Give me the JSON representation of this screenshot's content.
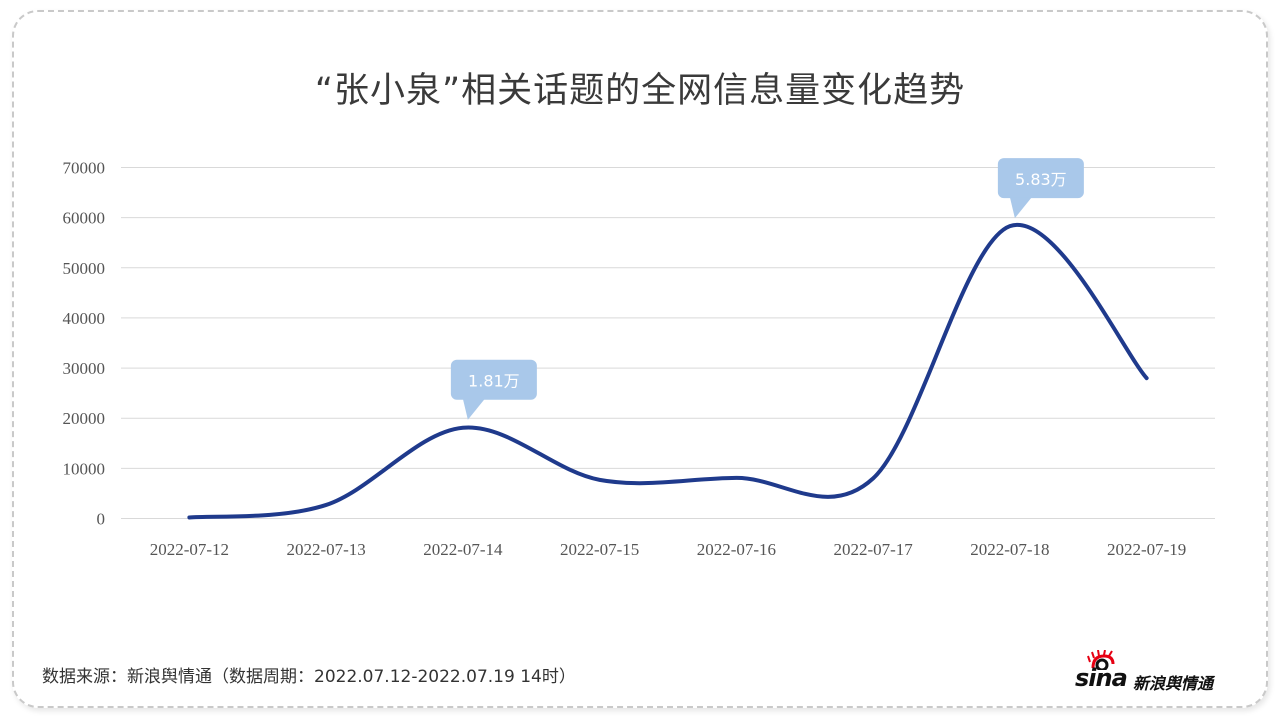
{
  "title": "“张小泉”相关话题的全网信息量变化趋势",
  "source_note": "数据来源：新浪舆情通（数据周期：2022.07.12-2022.07.19 14时）",
  "logo": {
    "text_latin": "sina",
    "text_cn": "新浪舆情通",
    "eye_color": "#e60012"
  },
  "colors": {
    "line": "#1f3a8c",
    "callout": "#a9c8ea",
    "grid": "#d9d9d9",
    "tick_text": "#555555",
    "border": "#c9c9c9"
  },
  "chart_data": {
    "type": "line",
    "title": "“张小泉”相关话题的全网信息量变化趋势",
    "xlabel": "",
    "ylabel": "",
    "categories": [
      "2022-07-12",
      "2022-07-13",
      "2022-07-14",
      "2022-07-15",
      "2022-07-16",
      "2022-07-17",
      "2022-07-18",
      "2022-07-19"
    ],
    "series": [
      {
        "name": "全网信息量",
        "values": [
          200,
          2700,
          18100,
          7700,
          8100,
          8000,
          58300,
          28000
        ],
        "smooth": true
      }
    ],
    "ylim": [
      0,
      70000
    ],
    "yticks": [
      0,
      10000,
      20000,
      30000,
      40000,
      50000,
      60000,
      70000
    ],
    "grid": true,
    "legend": null,
    "annotations": [
      {
        "category": "2022-07-14",
        "text": "1.81万"
      },
      {
        "category": "2022-07-18",
        "text": "5.83万"
      }
    ]
  }
}
